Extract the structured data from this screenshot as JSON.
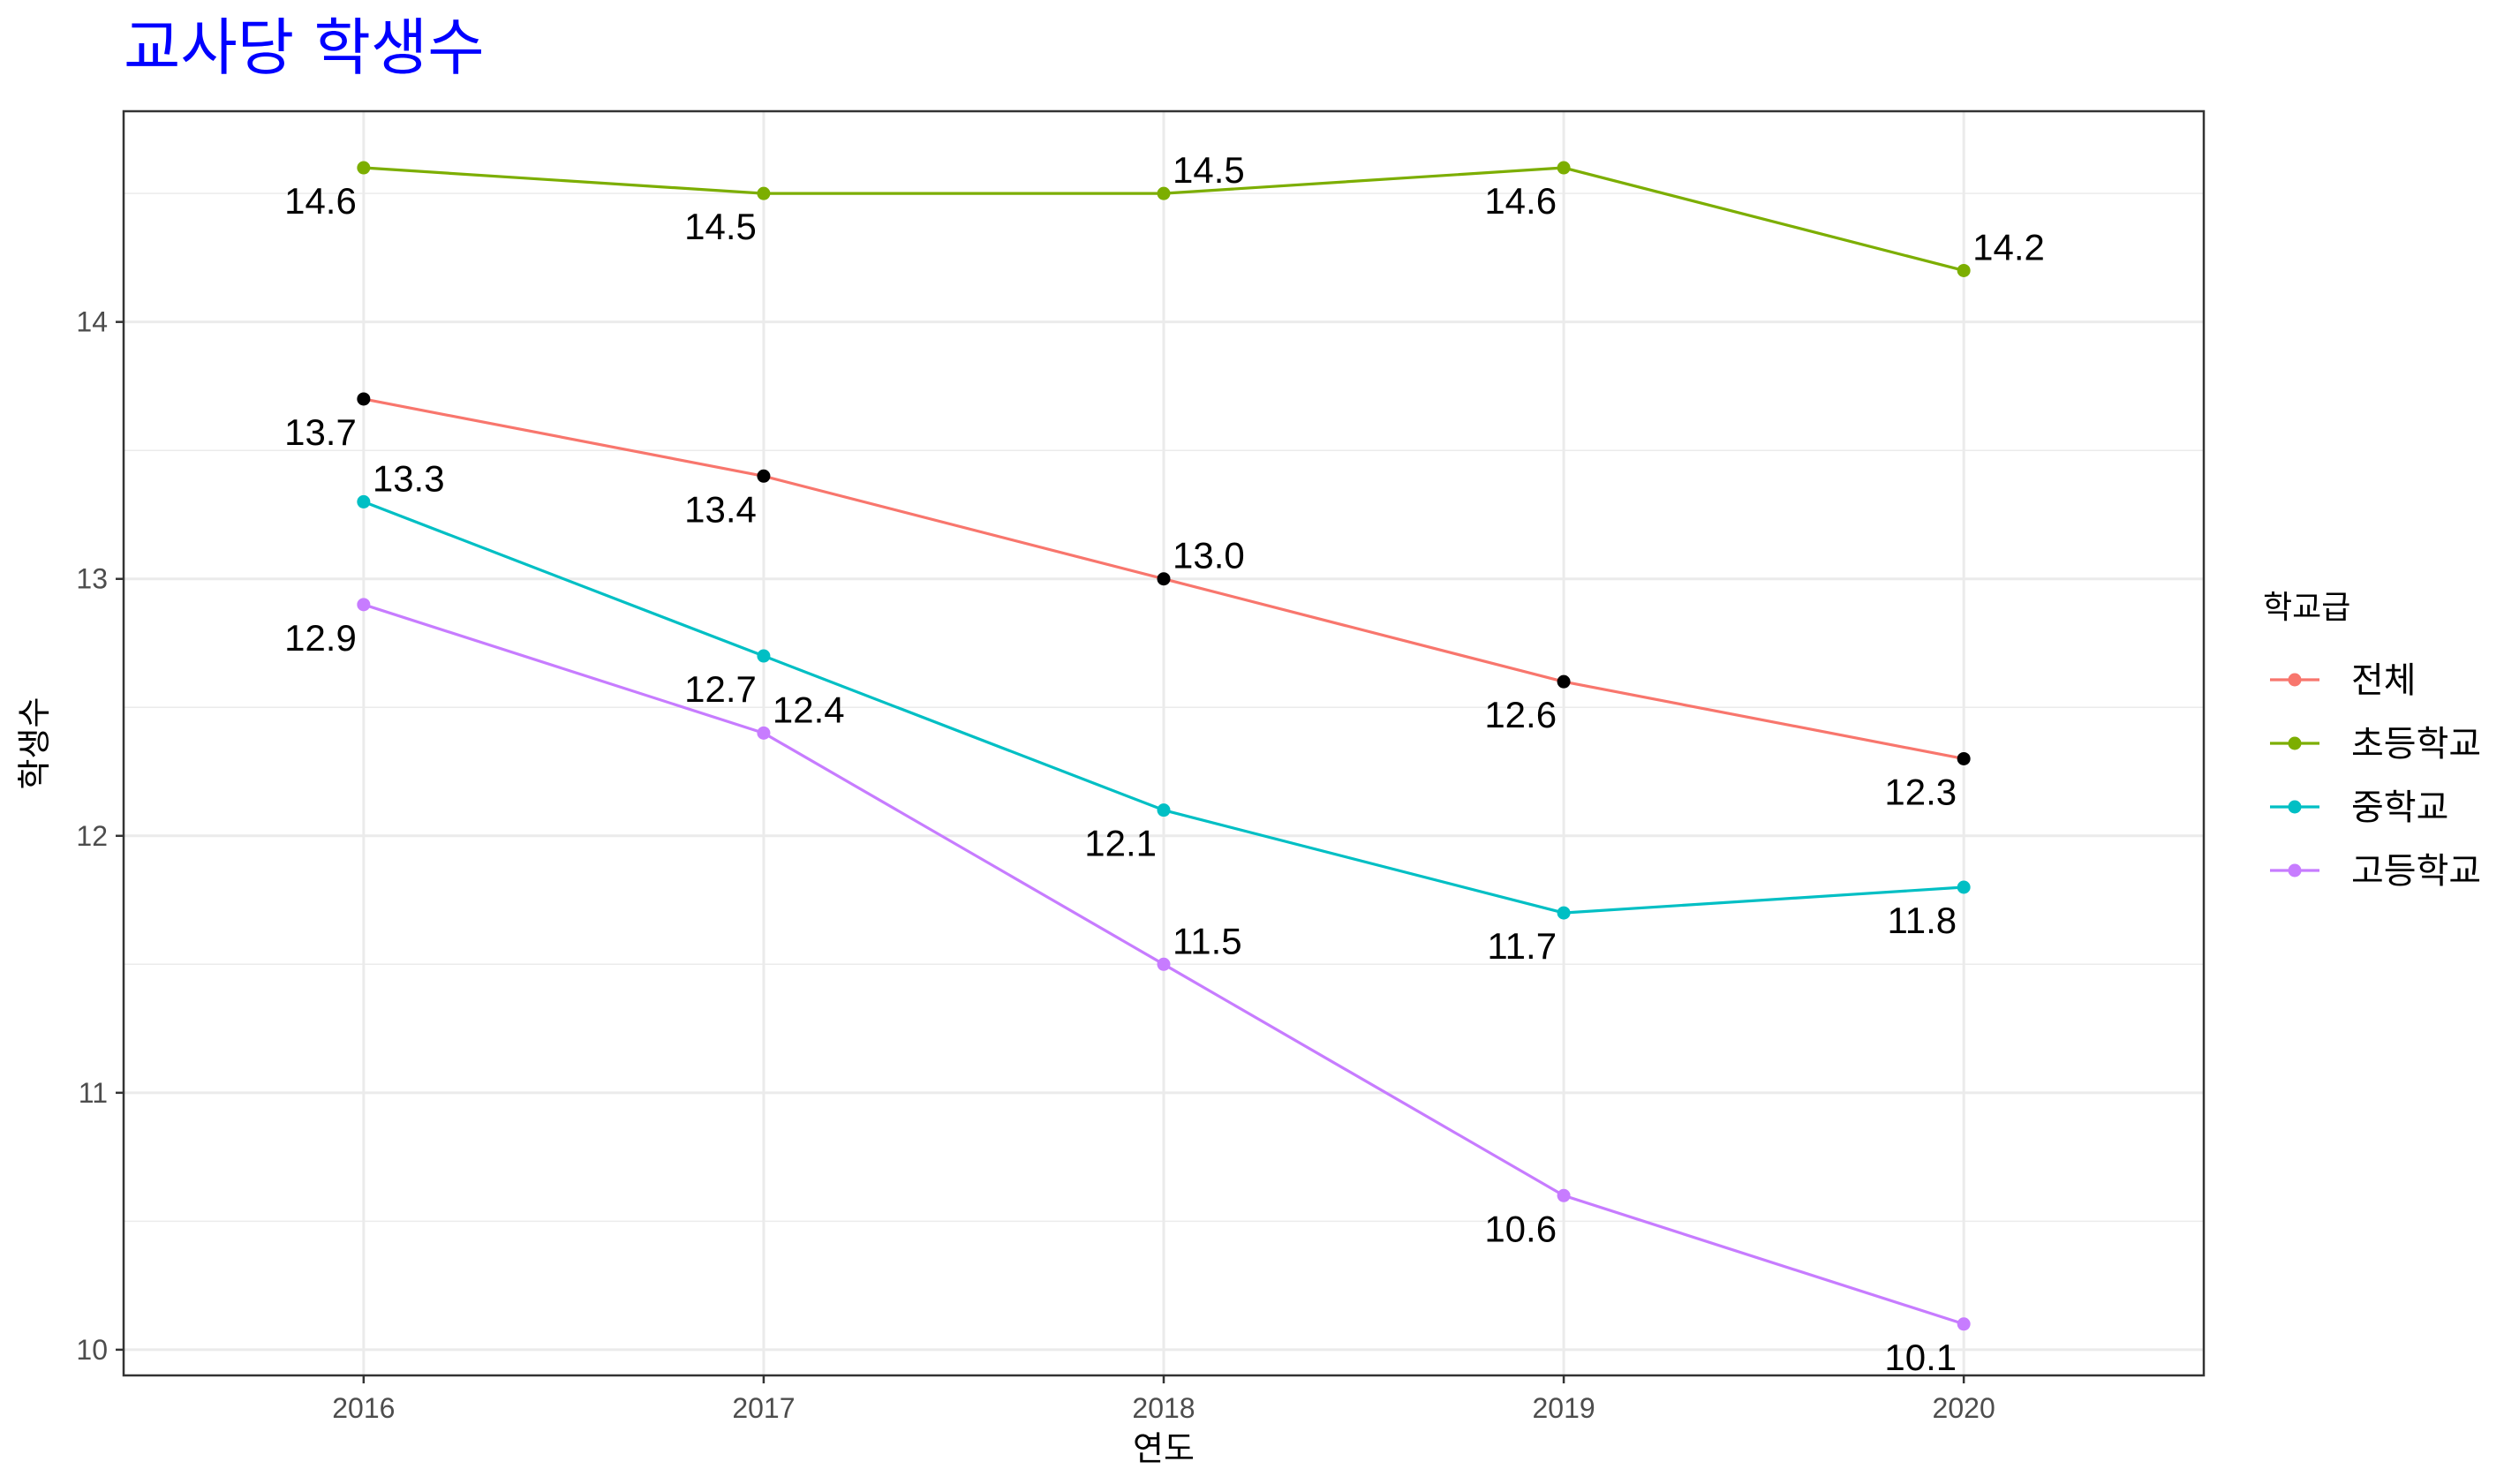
{
  "chart_data": {
    "type": "line",
    "title": "교사당 학생수",
    "xlabel": "연도",
    "ylabel": "학생수",
    "x": [
      2016,
      2017,
      2018,
      2019,
      2020
    ],
    "x_tick_labels": [
      "2016",
      "2017",
      "2018",
      "2019",
      "2020"
    ],
    "y_ticks": [
      10,
      11,
      12,
      13,
      14
    ],
    "y_tick_labels": [
      "10",
      "11",
      "12",
      "13",
      "14"
    ],
    "xlim": [
      2015.4,
      2020.6
    ],
    "ylim": [
      9.9,
      14.82
    ],
    "grid": true,
    "legend": {
      "title": "학교급",
      "position": "right"
    },
    "series": [
      {
        "name": "전체",
        "color": "#F8766D",
        "point_color": "#000000",
        "values": [
          13.7,
          13.4,
          13.0,
          12.6,
          12.3
        ],
        "labels": [
          "13.7",
          "13.4",
          "13.0",
          "12.6",
          "12.3"
        ]
      },
      {
        "name": "초등학교",
        "color": "#7CAE00",
        "point_color": "#7CAE00",
        "values": [
          14.6,
          14.5,
          14.5,
          14.6,
          14.2
        ],
        "labels": [
          "14.6",
          "14.5",
          "14.5",
          "14.6",
          "14.2"
        ]
      },
      {
        "name": "중학교",
        "color": "#00BFC4",
        "point_color": "#00BFC4",
        "values": [
          13.3,
          12.7,
          12.1,
          11.7,
          11.8
        ],
        "labels": [
          "13.3",
          "12.7",
          "12.1",
          "11.7",
          "11.8"
        ]
      },
      {
        "name": "고등학교",
        "color": "#C77CFF",
        "point_color": "#C77CFF",
        "values": [
          12.9,
          12.4,
          11.5,
          10.6,
          10.1
        ],
        "labels": [
          "12.9",
          "12.4",
          "11.5",
          "10.6",
          "10.1"
        ]
      }
    ]
  }
}
